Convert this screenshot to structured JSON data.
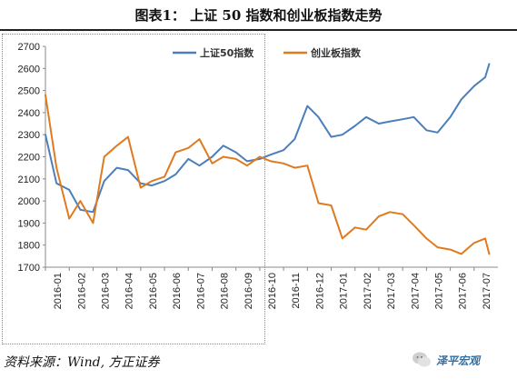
{
  "title": "图表1：  上证 50 指数和创业板指数走势",
  "source": "资料来源：Wind, 方正证券",
  "watermark_text": "泽平宏观",
  "colors": {
    "blue": "#4a7fbb",
    "orange": "#e07a1f",
    "axis": "#888888",
    "title_rule": "#222222"
  },
  "chart_data": {
    "type": "line",
    "ylim": [
      1700,
      2700
    ],
    "yticks": [
      1700,
      1800,
      1900,
      2000,
      2100,
      2200,
      2300,
      2400,
      2500,
      2600,
      2700
    ],
    "xticks": [
      "2016-01",
      "2016-02",
      "2016-03",
      "2016-04",
      "2016-05",
      "2016-06",
      "2016-07",
      "2016-08",
      "2016-09",
      "2016-10",
      "2016-11",
      "2016-12",
      "2017-01",
      "2017-02",
      "2017-03",
      "2017-04",
      "2017-05",
      "2017-06",
      "2017-07"
    ],
    "legend_position": "top-center",
    "series": [
      {
        "name": "上证50指数",
        "color": "#4a7fbb",
        "x": [
          "2016-01",
          "2016-01-15",
          "2016-02",
          "2016-02-15",
          "2016-03",
          "2016-03-15",
          "2016-04",
          "2016-04-15",
          "2016-05",
          "2016-05-15",
          "2016-06",
          "2016-06-15",
          "2016-07",
          "2016-07-15",
          "2016-08",
          "2016-08-15",
          "2016-09",
          "2016-09-15",
          "2016-10",
          "2016-10-15",
          "2016-11",
          "2016-11-15",
          "2016-12",
          "2016-12-15",
          "2017-01",
          "2017-01-15",
          "2017-02",
          "2017-02-15",
          "2017-03",
          "2017-03-15",
          "2017-04",
          "2017-04-15",
          "2017-05",
          "2017-05-15",
          "2017-06",
          "2017-06-15",
          "2017-07",
          "2017-07-15",
          "2017-07-20"
        ],
        "values": [
          2300,
          2080,
          2050,
          1960,
          1950,
          2090,
          2150,
          2140,
          2080,
          2070,
          2090,
          2120,
          2190,
          2160,
          2200,
          2250,
          2220,
          2180,
          2190,
          2210,
          2230,
          2280,
          2430,
          2380,
          2290,
          2300,
          2340,
          2380,
          2350,
          2360,
          2370,
          2380,
          2320,
          2310,
          2380,
          2460,
          2520,
          2560,
          2620
        ]
      },
      {
        "name": "创业板指数",
        "color": "#e07a1f",
        "x": [
          "2016-01",
          "2016-01-15",
          "2016-02",
          "2016-02-15",
          "2016-03",
          "2016-03-15",
          "2016-04",
          "2016-04-15",
          "2016-05",
          "2016-05-15",
          "2016-06",
          "2016-06-15",
          "2016-07",
          "2016-07-15",
          "2016-08",
          "2016-08-15",
          "2016-09",
          "2016-09-15",
          "2016-10",
          "2016-10-15",
          "2016-11",
          "2016-11-15",
          "2016-12",
          "2016-12-15",
          "2017-01",
          "2017-01-15",
          "2017-02",
          "2017-02-15",
          "2017-03",
          "2017-03-15",
          "2017-04",
          "2017-04-15",
          "2017-05",
          "2017-05-15",
          "2017-06",
          "2017-06-15",
          "2017-07",
          "2017-07-15",
          "2017-07-20"
        ],
        "values": [
          2480,
          2150,
          1920,
          2000,
          1900,
          2200,
          2250,
          2290,
          2060,
          2090,
          2110,
          2220,
          2240,
          2280,
          2170,
          2200,
          2190,
          2160,
          2200,
          2180,
          2170,
          2150,
          2160,
          1990,
          1980,
          1830,
          1880,
          1870,
          1930,
          1950,
          1940,
          1890,
          1830,
          1790,
          1780,
          1760,
          1810,
          1830,
          1760
        ]
      }
    ]
  }
}
